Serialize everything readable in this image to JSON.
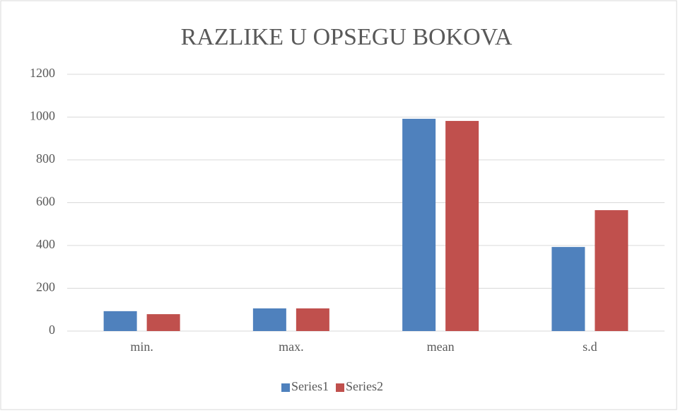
{
  "chart_data": {
    "type": "bar",
    "title": "RAZLIKE  U OPSEGU BOKOVA",
    "categories": [
      "min.",
      "max.",
      "mean",
      "s.d"
    ],
    "series": [
      {
        "name": "Series1",
        "color": "#4f81bd",
        "values": [
          93,
          106,
          992,
          393
        ]
      },
      {
        "name": "Series2",
        "color": "#c0504d",
        "values": [
          79,
          106,
          982,
          565
        ]
      }
    ],
    "ylim": [
      0,
      1200
    ],
    "yticks": [
      0,
      200,
      400,
      600,
      800,
      1000,
      1200
    ],
    "grid": true,
    "legend": "bottom"
  }
}
